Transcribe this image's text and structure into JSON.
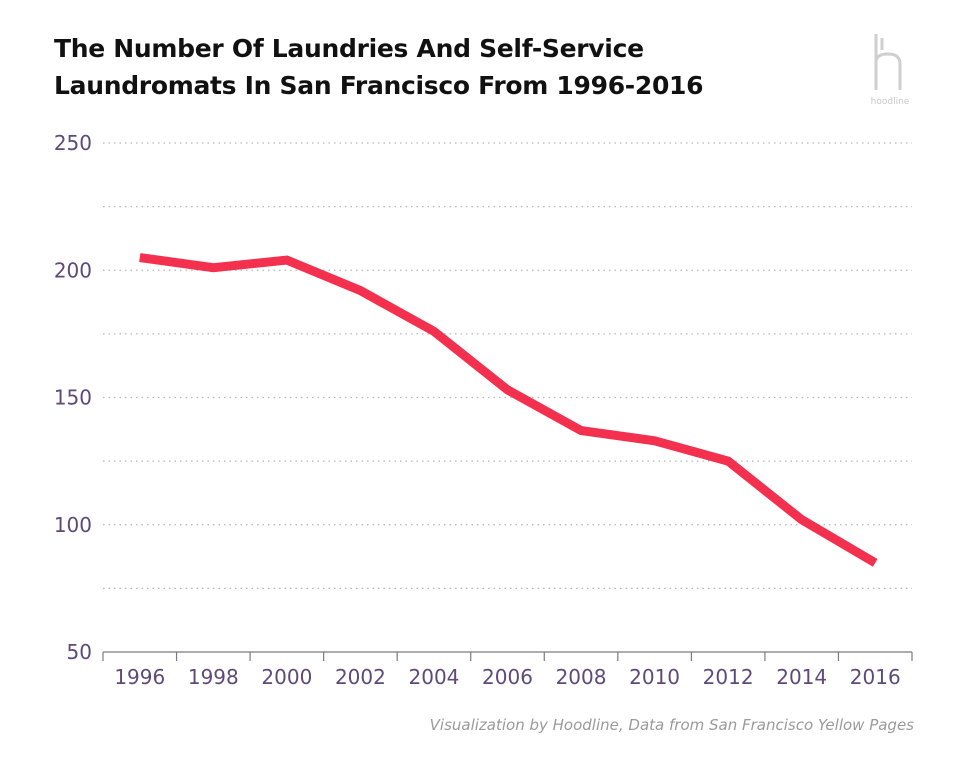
{
  "title_lines": [
    "The Number Of Laundries And Self-Service",
    "Laundromats In San Francisco From 1996-2016"
  ],
  "logo": {
    "text": "hoodline"
  },
  "credit": "Visualization by Hoodline, Data from San Francisco Yellow Pages",
  "colors": {
    "line": "#f4304f",
    "tick_text": "#5e4a7a",
    "grid": "#b8b8b8",
    "axis": "#7a7a7a"
  },
  "chart_data": {
    "type": "line",
    "title": "The Number Of Laundries And Self-Service Laundromats In San Francisco From 1996-2016",
    "xlabel": "",
    "ylabel": "",
    "x": [
      1996,
      1998,
      2000,
      2002,
      2004,
      2006,
      2008,
      2010,
      2012,
      2014,
      2016
    ],
    "values": [
      205,
      201,
      204,
      192,
      176,
      153,
      137,
      133,
      125,
      102,
      85
    ],
    "xlim": [
      1995,
      2017
    ],
    "ylim": [
      50,
      250
    ],
    "y_ticks": [
      50,
      100,
      150,
      200,
      250
    ],
    "y_minor_grid": [
      75,
      125,
      175,
      225
    ],
    "x_ticks": [
      1996,
      1998,
      2000,
      2002,
      2004,
      2006,
      2008,
      2010,
      2012,
      2014,
      2016
    ],
    "grid": true,
    "legend": "none"
  }
}
